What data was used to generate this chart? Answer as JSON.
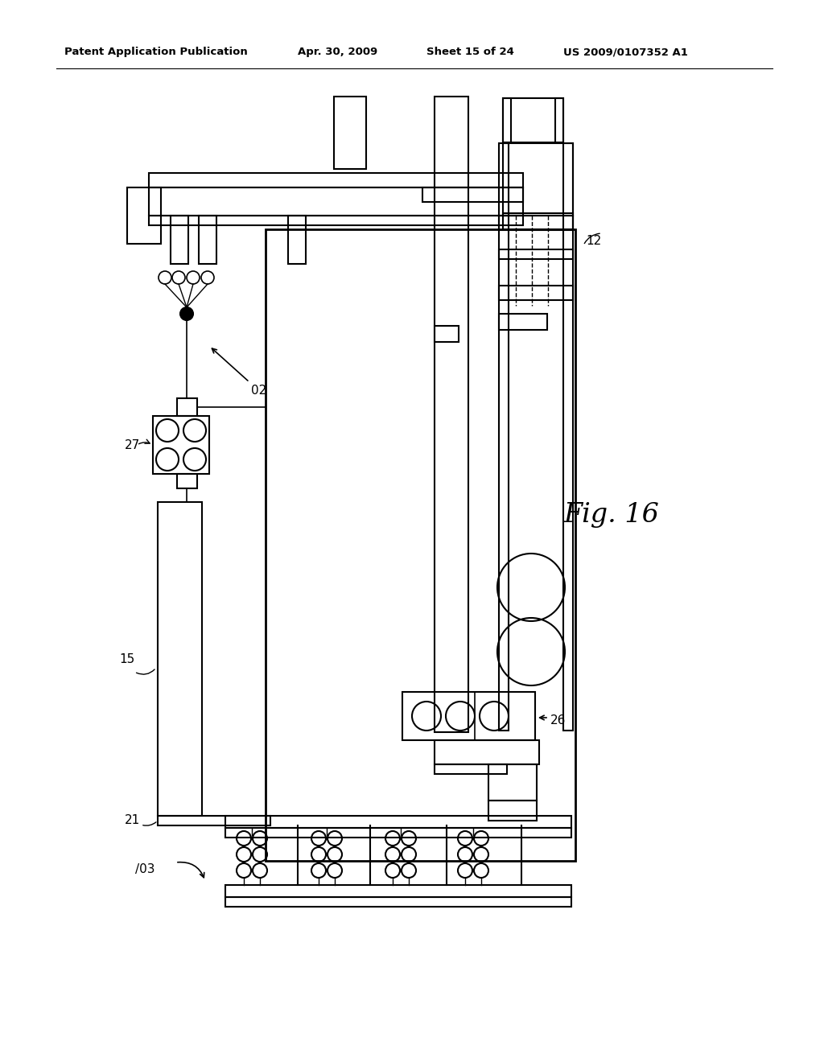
{
  "bg_color": "#ffffff",
  "header_text": "Patent Application Publication",
  "header_date": "Apr. 30, 2009",
  "header_sheet": "Sheet 15 of 24",
  "header_patent": "US 2009/0107352 A1",
  "fig_label": "Fig. 16"
}
